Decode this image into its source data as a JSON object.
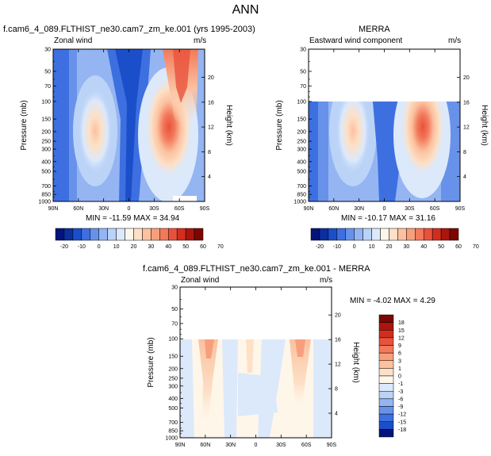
{
  "title": "ANN",
  "units": "m/s",
  "colorbar_top": {
    "labels": [
      "-20",
      "-10",
      "0",
      "10",
      "20",
      "30",
      "40",
      "50",
      "60",
      "70"
    ],
    "colors": [
      "#05137b",
      "#0b2fa0",
      "#1b4fc9",
      "#3d6fe0",
      "#6892ea",
      "#94b5f2",
      "#bbd3f7",
      "#dce9fb",
      "#fff6ea",
      "#fde0c6",
      "#fbc1a0",
      "#f79f7c",
      "#f2795a",
      "#e8523c",
      "#d22e20",
      "#ab150c",
      "#7c0603"
    ]
  },
  "colorbar_diff": {
    "labels": [
      "18",
      "15",
      "12",
      "9",
      "6",
      "3",
      "1",
      "0",
      "-1",
      "-3",
      "-6",
      "-9",
      "-12",
      "-15",
      "-18"
    ],
    "colors": [
      "#7c0603",
      "#ab150c",
      "#d22e20",
      "#e8523c",
      "#f2795a",
      "#f79f7c",
      "#fbc1a0",
      "#fde0c6",
      "#fff6ea",
      "#dce9fb",
      "#bbd3f7",
      "#94b5f2",
      "#6892ea",
      "#3d6fe0",
      "#1b4fc9",
      "#05137b"
    ]
  },
  "chart_data": [
    {
      "type": "heatmap",
      "title": "f.cam6_4_089.FLTHIST_ne30.cam7_zm_ke.001 (yrs 1995-2003)",
      "left_label": "Zonal wind",
      "ylabel": "Pressure (mb)",
      "ylabel_right": "Height (km)",
      "x_ticks": [
        "90N",
        "60N",
        "30N",
        "0",
        "30S",
        "60S",
        "90S"
      ],
      "y_ticks": [
        "30",
        "50",
        "70",
        "100",
        "150",
        "200",
        "250",
        "300",
        "400",
        "500",
        "700",
        "850",
        "1000"
      ],
      "y_ticks_right": [
        "20",
        "16",
        "12",
        "8",
        "4"
      ],
      "ylim": [
        1000,
        30
      ],
      "stats": "MIN = -11.59  MAX = 34.94",
      "min": -11.59,
      "max": 34.94
    },
    {
      "type": "heatmap",
      "title": "MERRA",
      "left_label": "Eastward wind component",
      "ylabel": "Pressure (mb)",
      "ylabel_right": "Height (km)",
      "x_ticks": [
        "90N",
        "60N",
        "30N",
        "0",
        "30S",
        "60S",
        "90S"
      ],
      "y_ticks": [
        "30",
        "50",
        "70",
        "100",
        "150",
        "200",
        "250",
        "300",
        "400",
        "500",
        "700",
        "850",
        "1000"
      ],
      "y_ticks_right": [
        "20",
        "16",
        "12",
        "8",
        "4"
      ],
      "ylim": [
        1000,
        30
      ],
      "data_top_mb": 100,
      "stats": "MIN = -10.17  MAX = 31.16",
      "min": -10.17,
      "max": 31.16
    },
    {
      "type": "heatmap",
      "title": "f.cam6_4_089.FLTHIST_ne30.cam7_zm_ke.001 - MERRA",
      "left_label": "Zonal wind",
      "ylabel": "Pressure (mb)",
      "ylabel_right": "Height (km)",
      "x_ticks": [
        "90N",
        "60N",
        "30N",
        "0",
        "30S",
        "60S",
        "90S"
      ],
      "y_ticks": [
        "30",
        "50",
        "70",
        "100",
        "150",
        "200",
        "250",
        "300",
        "400",
        "500",
        "700",
        "850",
        "1000"
      ],
      "y_ticks_right": [
        "20",
        "16",
        "12",
        "8",
        "4"
      ],
      "ylim": [
        1000,
        30
      ],
      "data_top_mb": 100,
      "stats": "MIN = -4.02  MAX = 4.29",
      "min": -4.02,
      "max": 4.29
    }
  ]
}
